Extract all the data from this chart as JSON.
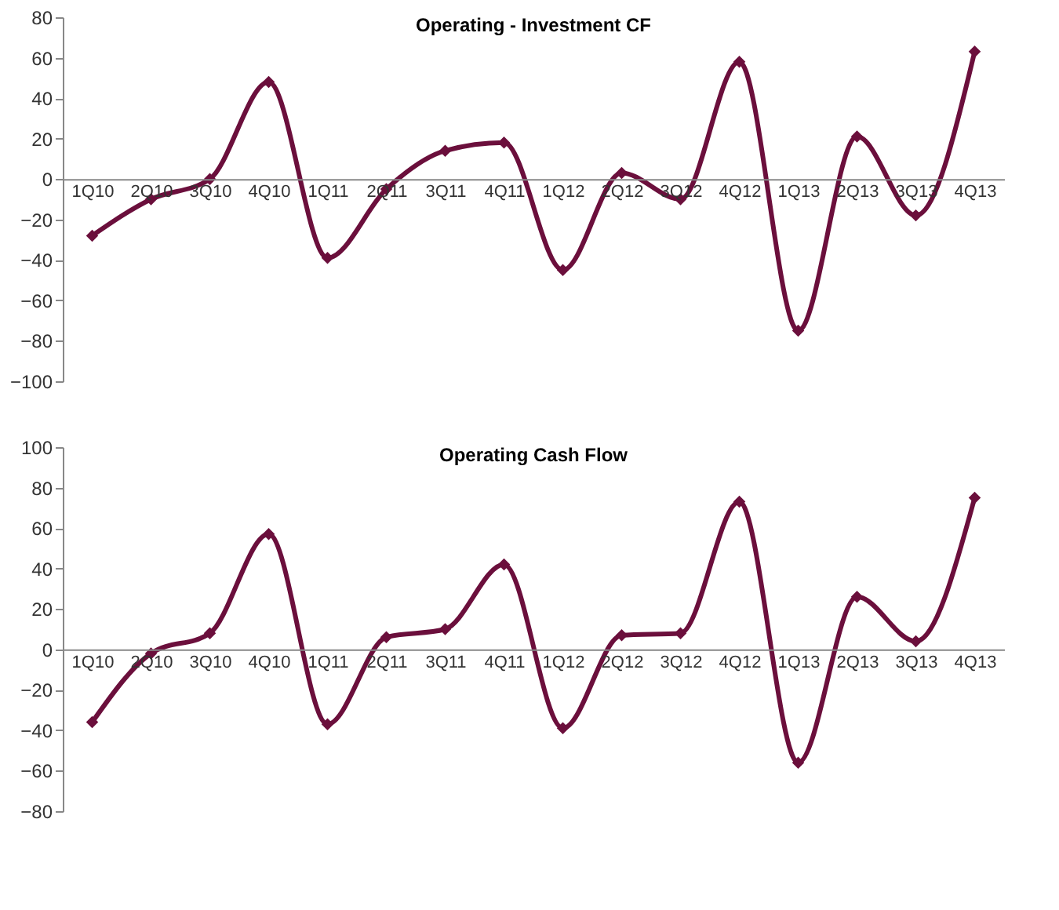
{
  "chart_data": [
    {
      "type": "line",
      "title": "Operating - Investment CF",
      "categories": [
        "1Q10",
        "2Q10",
        "3Q10",
        "4Q10",
        "1Q11",
        "2Q11",
        "3Q11",
        "4Q11",
        "1Q12",
        "2Q12",
        "3Q12",
        "4Q12",
        "1Q13",
        "2Q13",
        "3Q13",
        "4Q13"
      ],
      "series": [
        {
          "color": "#6b0f3c",
          "values": [
            -28,
            -10,
            0,
            48,
            -39,
            -5,
            14,
            18,
            -45,
            3,
            -10,
            58,
            -75,
            21,
            -18,
            63
          ]
        }
      ],
      "ylim": [
        -100,
        80
      ],
      "yticks": [
        -100,
        -80,
        -60,
        -40,
        -20,
        0,
        20,
        40,
        60,
        80
      ],
      "grid": false,
      "legend": false,
      "marker": "diamond",
      "line_style": "solid"
    },
    {
      "type": "line",
      "title": "Operating Cash Flow",
      "categories": [
        "1Q10",
        "2Q10",
        "3Q10",
        "4Q10",
        "1Q11",
        "2Q11",
        "3Q11",
        "4Q11",
        "1Q12",
        "2Q12",
        "3Q12",
        "4Q12",
        "1Q13",
        "2Q13",
        "3Q13",
        "4Q13"
      ],
      "series": [
        {
          "color": "#6b0f3c",
          "values": [
            -36,
            -2,
            8,
            57,
            -37,
            6,
            10,
            42,
            -39,
            7,
            8,
            73,
            -56,
            26,
            4,
            75
          ]
        }
      ],
      "ylim": [
        -80,
        100
      ],
      "yticks": [
        -80,
        -60,
        -40,
        -20,
        0,
        20,
        40,
        60,
        80,
        100
      ],
      "grid": false,
      "legend": false,
      "marker": "diamond",
      "line_style": "solid"
    }
  ]
}
